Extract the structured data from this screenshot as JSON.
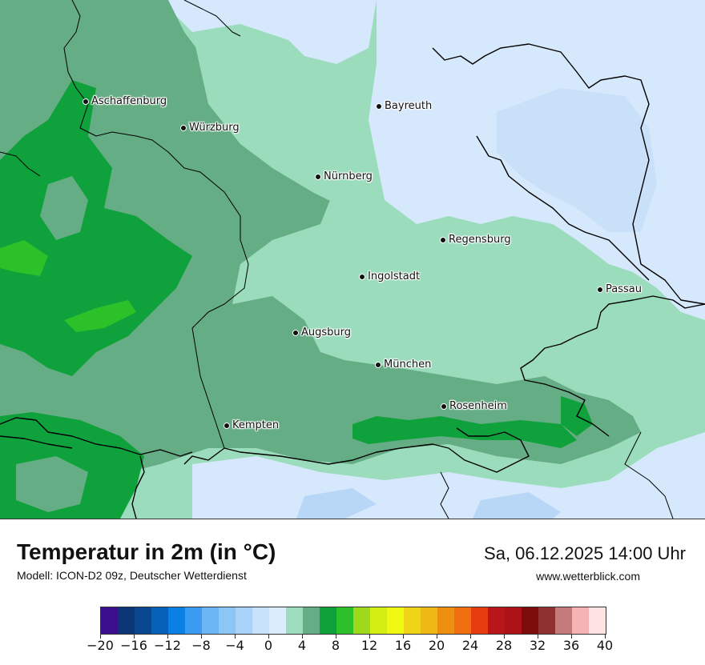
{
  "map": {
    "colors": {
      "lightblue": "#d6e8fb",
      "paleblue": "#c2ddf7",
      "mint": "#9bdcbc",
      "midgreen": "#65ad84",
      "green": "#0fa13b",
      "brightgreen": "#2cc129",
      "border": "#000000"
    },
    "cities": [
      {
        "name": "Aschaffenburg"
      },
      {
        "name": "Bayreuth"
      },
      {
        "name": "Würzburg"
      },
      {
        "name": "Nürnberg"
      },
      {
        "name": "Regensburg"
      },
      {
        "name": "Ingolstadt"
      },
      {
        "name": "Passau"
      },
      {
        "name": "Augsburg"
      },
      {
        "name": "München"
      },
      {
        "name": "Rosenheim"
      },
      {
        "name": "Kempten"
      }
    ]
  },
  "footer": {
    "title": "Temperatur in 2m (in °C)",
    "model": "Modell: ICON-D2 09z, Deutscher Wetterdienst",
    "datetime": "Sa, 06.12.2025 14:00 Uhr",
    "website": "www.wetterblick.com"
  },
  "legend": {
    "unit": "°C",
    "colors": [
      "#3b0f8c",
      "#0b3675",
      "#09488f",
      "#0761b8",
      "#0a80e4",
      "#3a9bf0",
      "#6db6f6",
      "#8cc6f7",
      "#a9d3f8",
      "#c7e2fa",
      "#dbecfc",
      "#9ddcbe",
      "#65ad84",
      "#0ea13a",
      "#2cc12a",
      "#9fd91c",
      "#d3ee12",
      "#eff813",
      "#efd316",
      "#eeb815",
      "#ef8f12",
      "#ee6e10",
      "#e53d10",
      "#b8161a",
      "#ad1218",
      "#7c0b0b",
      "#8f3131",
      "#c47a7b",
      "#f5b3b3",
      "#fee3e3"
    ],
    "tick_labels": [
      "−20",
      "−16",
      "−12",
      "−8",
      "−4",
      "0",
      "4",
      "8",
      "12",
      "16",
      "20",
      "24",
      "28",
      "32",
      "36",
      "40"
    ]
  }
}
